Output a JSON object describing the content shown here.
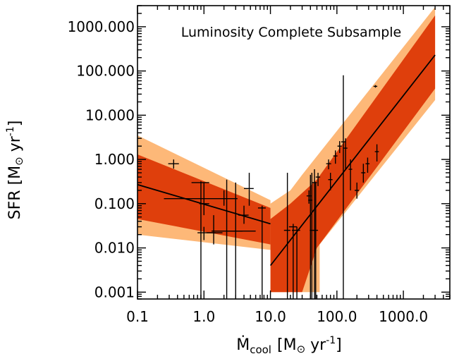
{
  "chart_data": {
    "type": "scatter",
    "title": "Luminosity Complete Subsample",
    "xlabel": {
      "symbol": "Ṁ",
      "sub": "cool",
      "unit": "[M",
      "sun": "⊙",
      "tail": " yr",
      "sup": "-1",
      "close": "]"
    },
    "ylabel": {
      "main": "SFR [M",
      "sun": "⊙",
      "tail": " yr",
      "sup": "-1",
      "close": "]"
    },
    "x_scale": "log",
    "y_scale": "log",
    "xlim": [
      0.1,
      5000
    ],
    "ylim": [
      0.0007,
      3000
    ],
    "x_ticks": [
      {
        "value": 0.1,
        "label": "0.1"
      },
      {
        "value": 1,
        "label": "1.0"
      },
      {
        "value": 10,
        "label": "10.0"
      },
      {
        "value": 100,
        "label": "100.0"
      },
      {
        "value": 1000,
        "label": "1000.0"
      }
    ],
    "y_ticks": [
      {
        "value": 0.001,
        "label": "0.001"
      },
      {
        "value": 0.01,
        "label": "0.010"
      },
      {
        "value": 0.1,
        "label": "0.100"
      },
      {
        "value": 1,
        "label": "1.000"
      },
      {
        "value": 10,
        "label": "10.000"
      },
      {
        "value": 100,
        "label": "100.000"
      },
      {
        "value": 1000,
        "label": "1000.000"
      }
    ],
    "colors": {
      "outer_band": "#fdb878",
      "inner_band": "#df3f0c",
      "line": "#000000",
      "points": "#000000"
    },
    "fits": [
      {
        "x_range": [
          0.1,
          10
        ],
        "line": [
          [
            0.1,
            0.27
          ],
          [
            10,
            0.035
          ]
        ],
        "inner_band_upper": [
          [
            0.1,
            1.3
          ],
          [
            10,
            0.08
          ]
        ],
        "inner_band_lower": [
          [
            0.1,
            0.045
          ],
          [
            10,
            0.012
          ]
        ],
        "outer_band_upper": [
          [
            0.1,
            3.5
          ],
          [
            10,
            0.12
          ]
        ],
        "outer_band_lower": [
          [
            0.1,
            0.02
          ],
          [
            10,
            0.009
          ]
        ]
      },
      {
        "x_range": [
          10,
          3000
        ],
        "line": [
          [
            10,
            0.004
          ],
          [
            3000,
            230
          ]
        ],
        "inner_band_upper": [
          [
            10,
            0.045
          ],
          [
            20,
            0.1
          ],
          [
            50,
            0.35
          ],
          [
            3000,
            1800
          ]
        ],
        "inner_band_lower": [
          [
            10,
            0.001
          ],
          [
            30,
            0.001
          ],
          [
            50,
            0.01
          ],
          [
            3000,
            40
          ]
        ],
        "outer_band_upper": [
          [
            10,
            0.1
          ],
          [
            20,
            0.2
          ],
          [
            30,
            0.45
          ],
          [
            3000,
            2800
          ]
        ],
        "outer_band_lower": [
          [
            10,
            0.001
          ],
          [
            55,
            0.001
          ],
          [
            55,
            0.012
          ],
          [
            3000,
            22
          ]
        ]
      }
    ],
    "points": [
      {
        "x": 0.35,
        "y": 0.8,
        "xerr": [
          0.29,
          0.42
        ],
        "yerr": [
          0.62,
          1.0
        ]
      },
      {
        "x": 0.9,
        "y": 0.3,
        "xerr": [
          0.65,
          1.2
        ],
        "yerr": [
          0.0007,
          0.32
        ]
      },
      {
        "x": 1.0,
        "y": 0.1,
        "xerr": [
          0.85,
          1.2
        ],
        "yerr": [
          0.055,
          0.3
        ]
      },
      {
        "x": 2.0,
        "y": 0.13,
        "xerr": [
          0.25,
          3.2
        ],
        "yerr": [
          0.09,
          0.2
        ]
      },
      {
        "x": 1.0,
        "y": 0.022,
        "xerr": [
          0.8,
          1.5
        ],
        "yerr": [
          0.015,
          0.03
        ]
      },
      {
        "x": 1.4,
        "y": 0.022,
        "xerr": [
          1.1,
          1.9
        ],
        "yerr": [
          0.012,
          0.055
        ]
      },
      {
        "x": 2.2,
        "y": 0.024,
        "xerr": [
          1.3,
          6.0
        ],
        "yerr": [
          0.0007,
          0.35
        ]
      },
      {
        "x": 3.0,
        "y": 0.024,
        "xerr": [
          2.2,
          3.8
        ],
        "yerr": [
          0.0007,
          0.3
        ]
      },
      {
        "x": 4.0,
        "y": 0.055,
        "xerr": [
          3.3,
          4.7
        ],
        "yerr": [
          0.035,
          0.09
        ]
      },
      {
        "x": 4.8,
        "y": 0.22,
        "xerr": [
          4.0,
          5.6
        ],
        "yerr": [
          0.09,
          0.5
        ]
      },
      {
        "x": 7.5,
        "y": 0.08,
        "xerr": [
          6.5,
          8.5
        ],
        "yerr": [
          0.0007,
          0.09
        ]
      },
      {
        "x": 18,
        "y": 0.025,
        "xerr": [
          16,
          20
        ],
        "yerr": [
          0.0007,
          0.5
        ]
      },
      {
        "x": 22,
        "y": 0.03,
        "xerr": [
          19,
          25
        ],
        "yerr": [
          0.0007,
          0.035
        ]
      },
      {
        "x": 25,
        "y": 0.025,
        "xerr": [
          21,
          28
        ],
        "yerr": [
          0.0007,
          0.03
        ]
      },
      {
        "x": 38,
        "y": 0.15,
        "xerr": [
          35,
          41
        ],
        "yerr": [
          0.1,
          0.2
        ]
      },
      {
        "x": 40,
        "y": 0.12,
        "xerr": [
          37,
          43
        ],
        "yerr": [
          0.0007,
          0.45
        ]
      },
      {
        "x": 42,
        "y": 0.025,
        "xerr": [
          39,
          45
        ],
        "yerr": [
          0.0007,
          0.5
        ]
      },
      {
        "x": 46,
        "y": 0.3,
        "xerr": [
          42,
          50
        ],
        "yerr": [
          0.0007,
          0.6
        ]
      },
      {
        "x": 48,
        "y": 0.025,
        "xerr": [
          44,
          52
        ],
        "yerr": [
          0.0007,
          0.3
        ]
      },
      {
        "x": 52,
        "y": 0.4,
        "xerr": [
          48,
          56
        ],
        "yerr": [
          0.25,
          0.5
        ]
      },
      {
        "x": 75,
        "y": 0.8,
        "xerr": [
          69,
          82
        ],
        "yerr": [
          0.6,
          1.0
        ]
      },
      {
        "x": 80,
        "y": 0.35,
        "xerr": [
          74,
          86
        ],
        "yerr": [
          0.2,
          0.5
        ]
      },
      {
        "x": 95,
        "y": 1.2,
        "xerr": [
          88,
          102
        ],
        "yerr": [
          0.8,
          1.6
        ]
      },
      {
        "x": 110,
        "y": 2.0,
        "xerr": [
          102,
          118
        ],
        "yerr": [
          1.4,
          2.6
        ]
      },
      {
        "x": 125,
        "y": 2.5,
        "xerr": [
          116,
          134
        ],
        "yerr": [
          0.0007,
          80
        ]
      },
      {
        "x": 135,
        "y": 1.8,
        "xerr": [
          126,
          144
        ],
        "yerr": [
          0.6,
          3.0
        ]
      },
      {
        "x": 160,
        "y": 0.6,
        "xerr": [
          150,
          170
        ],
        "yerr": [
          0.2,
          1.0
        ]
      },
      {
        "x": 200,
        "y": 0.2,
        "xerr": [
          185,
          215
        ],
        "yerr": [
          0.13,
          0.3
        ]
      },
      {
        "x": 250,
        "y": 0.5,
        "xerr": [
          232,
          268
        ],
        "yerr": [
          0.3,
          0.8
        ]
      },
      {
        "x": 290,
        "y": 0.8,
        "xerr": [
          270,
          310
        ],
        "yerr": [
          0.5,
          1.1
        ]
      },
      {
        "x": 380,
        "y": 45,
        "xerr": [
          355,
          405
        ],
        "yerr": [
          42,
          48
        ]
      },
      {
        "x": 400,
        "y": 1.5,
        "xerr": [
          372,
          428
        ],
        "yerr": [
          0.9,
          2.2
        ]
      }
    ]
  }
}
